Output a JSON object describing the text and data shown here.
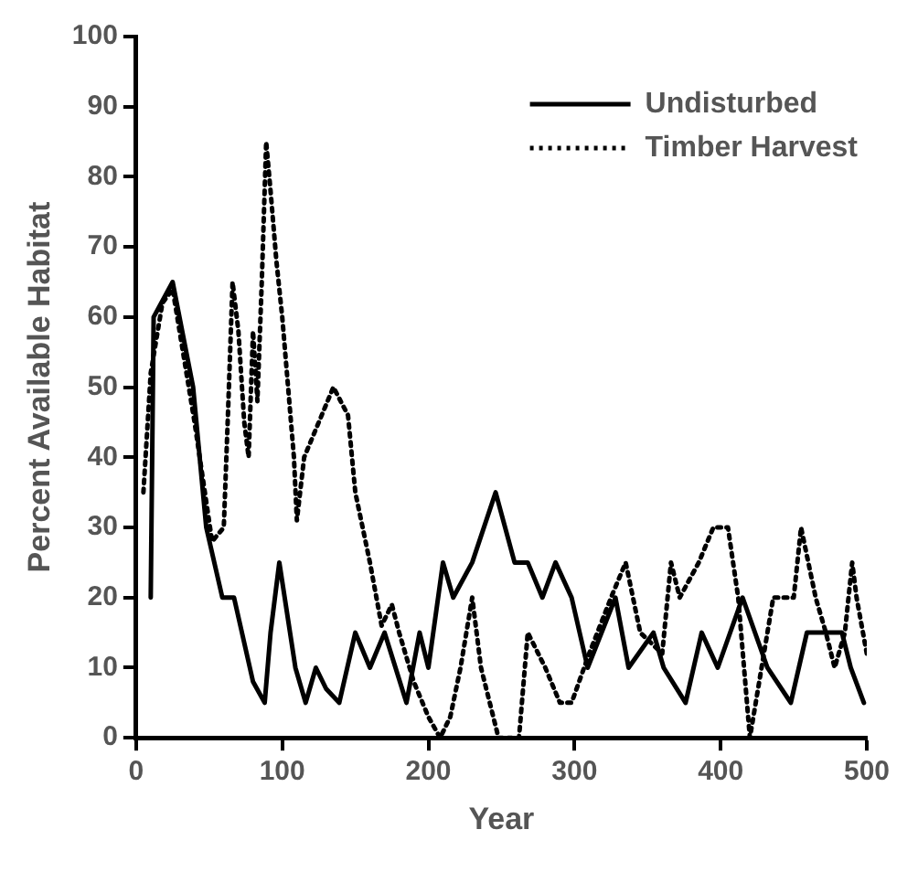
{
  "chart_data": {
    "type": "line",
    "xlabel": "Year",
    "ylabel": "Percent Available Habitat",
    "xlim": [
      0,
      500
    ],
    "ylim": [
      0,
      100
    ],
    "xticks": [
      0,
      100,
      200,
      300,
      400,
      500
    ],
    "yticks": [
      0,
      10,
      20,
      30,
      40,
      50,
      60,
      70,
      80,
      90,
      100
    ],
    "grid": false,
    "legend": "top right",
    "marker": "none",
    "series": [
      {
        "name": "Undisturbed",
        "color": "#000000",
        "line_style": "solid",
        "x": [
          10,
          12,
          25,
          39,
          48,
          59,
          67,
          80,
          88,
          92,
          98,
          109,
          116,
          123,
          130,
          139,
          150,
          160,
          170,
          185,
          194,
          200,
          210,
          217,
          230,
          246,
          259,
          268,
          278,
          287,
          298,
          309,
          328,
          337,
          354,
          361,
          376,
          387,
          398,
          415,
          432,
          448,
          459,
          483,
          489,
          498
        ],
        "values": [
          20,
          60,
          65,
          50,
          30,
          20,
          20,
          8,
          5,
          15,
          25,
          10,
          5,
          10,
          7,
          5,
          15,
          10,
          15,
          5,
          15,
          10,
          25,
          20,
          25,
          35,
          25,
          25,
          20,
          25,
          20,
          10,
          20,
          10,
          15,
          10,
          5,
          15,
          10,
          20,
          10,
          5,
          15,
          15,
          10,
          5
        ]
      },
      {
        "name": "Timber Harvest",
        "color": "#000000",
        "line_style": "dotted",
        "x": [
          5,
          10,
          18,
          25,
          40,
          52,
          60,
          63,
          66,
          70,
          74,
          77,
          80,
          83,
          86,
          89,
          92,
          96,
          100,
          104,
          108,
          110,
          115,
          125,
          135,
          145,
          150,
          160,
          168,
          175,
          180,
          190,
          200,
          208,
          215,
          222,
          230,
          236,
          248,
          262,
          268,
          280,
          290,
          298,
          310,
          325,
          335,
          345,
          360,
          366,
          372,
          385,
          395,
          405,
          412,
          420,
          428,
          436,
          450,
          455,
          465,
          472,
          478,
          485,
          490,
          493,
          500
        ],
        "values": [
          35,
          52,
          62,
          64,
          45,
          28,
          30,
          47,
          65,
          58,
          45,
          40,
          58,
          48,
          65,
          85,
          78,
          68,
          60,
          50,
          40,
          31,
          40,
          45,
          50,
          46,
          35,
          25,
          16,
          19,
          15,
          8,
          3,
          0,
          3,
          10,
          20,
          10,
          0,
          0,
          15,
          10,
          5,
          5,
          12,
          20,
          25,
          15,
          12,
          25,
          20,
          25,
          30,
          30,
          20,
          0,
          10,
          20,
          20,
          30,
          20,
          15,
          10,
          15,
          25,
          20,
          12
        ]
      }
    ]
  }
}
